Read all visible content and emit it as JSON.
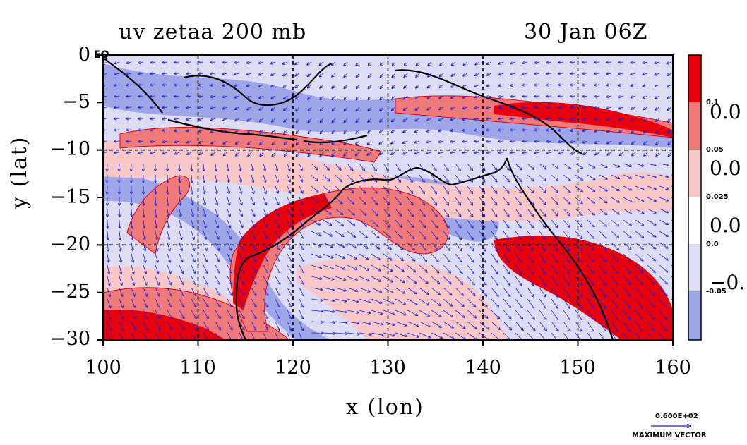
{
  "title_left": "uv zetaa 200 mb",
  "title_right": "30 Jan 06Z",
  "x_axis": {
    "label": "x (lon)",
    "ticks": [
      "100",
      "110",
      "120",
      "130",
      "140",
      "150",
      "160"
    ],
    "range": [
      100,
      160
    ]
  },
  "y_axis": {
    "label": "y (lat)",
    "ticks": [
      "0",
      "−5",
      "−10",
      "−15",
      "−20",
      "−25",
      "−30"
    ],
    "range": [
      -30,
      0
    ]
  },
  "map_label": "EQ",
  "colorbar": {
    "levels_small": [
      "0.1",
      "0.05",
      "0.025",
      "0.0",
      "-0.05"
    ],
    "levels_big": [
      "0.0",
      "0.0",
      "0.0",
      "−0."
    ],
    "colors": [
      "#e8000b",
      "#f07a7a",
      "#f8c8c8",
      "#ffffff",
      "#dcdcf4",
      "#9ea6e8"
    ]
  },
  "max_vector": {
    "value": "0.600E+02",
    "label": "MAXIMUM VECTOR"
  },
  "palette": {
    "strong_pos": "#e8000b",
    "mid_pos": "#f07a7a",
    "weak_pos": "#f8c8c8",
    "weak_neg": "#dcdcf4",
    "mid_neg": "#9ea6e8",
    "vector": "#1a22d8",
    "coast": "#000000"
  },
  "grid": true
}
